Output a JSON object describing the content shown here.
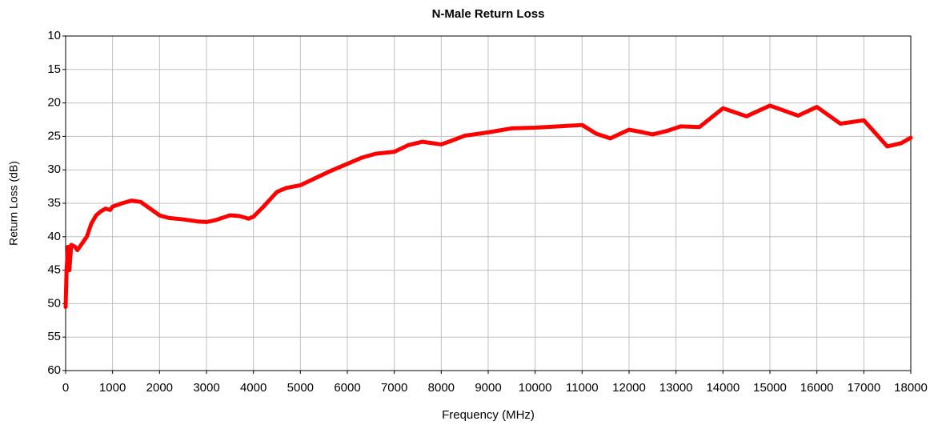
{
  "chart_data": {
    "type": "line",
    "title": "N-Male Return Loss",
    "x_label": "Frequency (MHz)",
    "y_label": "Return Loss (dB)",
    "x": [
      0,
      20,
      50,
      80,
      120,
      200,
      250,
      350,
      450,
      550,
      650,
      750,
      850,
      950,
      1000,
      1200,
      1400,
      1600,
      1800,
      2000,
      2200,
      2500,
      2800,
      3000,
      3200,
      3500,
      3700,
      3900,
      4000,
      4200,
      4500,
      4700,
      5000,
      5300,
      5600,
      6000,
      6300,
      6600,
      7000,
      7300,
      7600,
      8000,
      8200,
      8500,
      9000,
      9500,
      10000,
      10500,
      11000,
      11300,
      11600,
      12000,
      12300,
      12500,
      12800,
      13100,
      13500,
      14000,
      14500,
      15000,
      15600,
      16000,
      16500,
      17000,
      17500,
      17800,
      18000
    ],
    "series": [
      {
        "name": "Return Loss",
        "color": "#ff0000",
        "values": [
          50.5,
          45,
          41.5,
          45,
          41.2,
          41.5,
          42,
          41,
          40,
          38,
          36.8,
          36.2,
          35.8,
          36,
          35.5,
          35,
          34.6,
          34.8,
          35.8,
          36.8,
          37.2,
          37.4,
          37.7,
          37.8,
          37.5,
          36.8,
          36.9,
          37.3,
          37,
          35.6,
          33.3,
          32.7,
          32.3,
          31.3,
          30.3,
          29.1,
          28.2,
          27.6,
          27.3,
          26.3,
          25.8,
          26.2,
          25.7,
          24.9,
          24.4,
          23.8,
          23.7,
          23.5,
          23.3,
          24.6,
          25.3,
          24,
          24.4,
          24.7,
          24.2,
          23.5,
          23.6,
          20.8,
          22,
          20.4,
          21.9,
          20.6,
          23.1,
          22.6,
          26.5,
          26,
          25.2
        ]
      }
    ],
    "xlim": [
      0,
      18000
    ],
    "xticks": [
      0,
      1000,
      2000,
      3000,
      4000,
      5000,
      6000,
      7000,
      8000,
      9000,
      10000,
      11000,
      12000,
      13000,
      14000,
      15000,
      16000,
      17000,
      18000
    ],
    "ylim": [
      60,
      10
    ],
    "yticks": [
      10,
      15,
      20,
      25,
      30,
      35,
      40,
      45,
      50,
      55,
      60
    ],
    "grid": true
  }
}
